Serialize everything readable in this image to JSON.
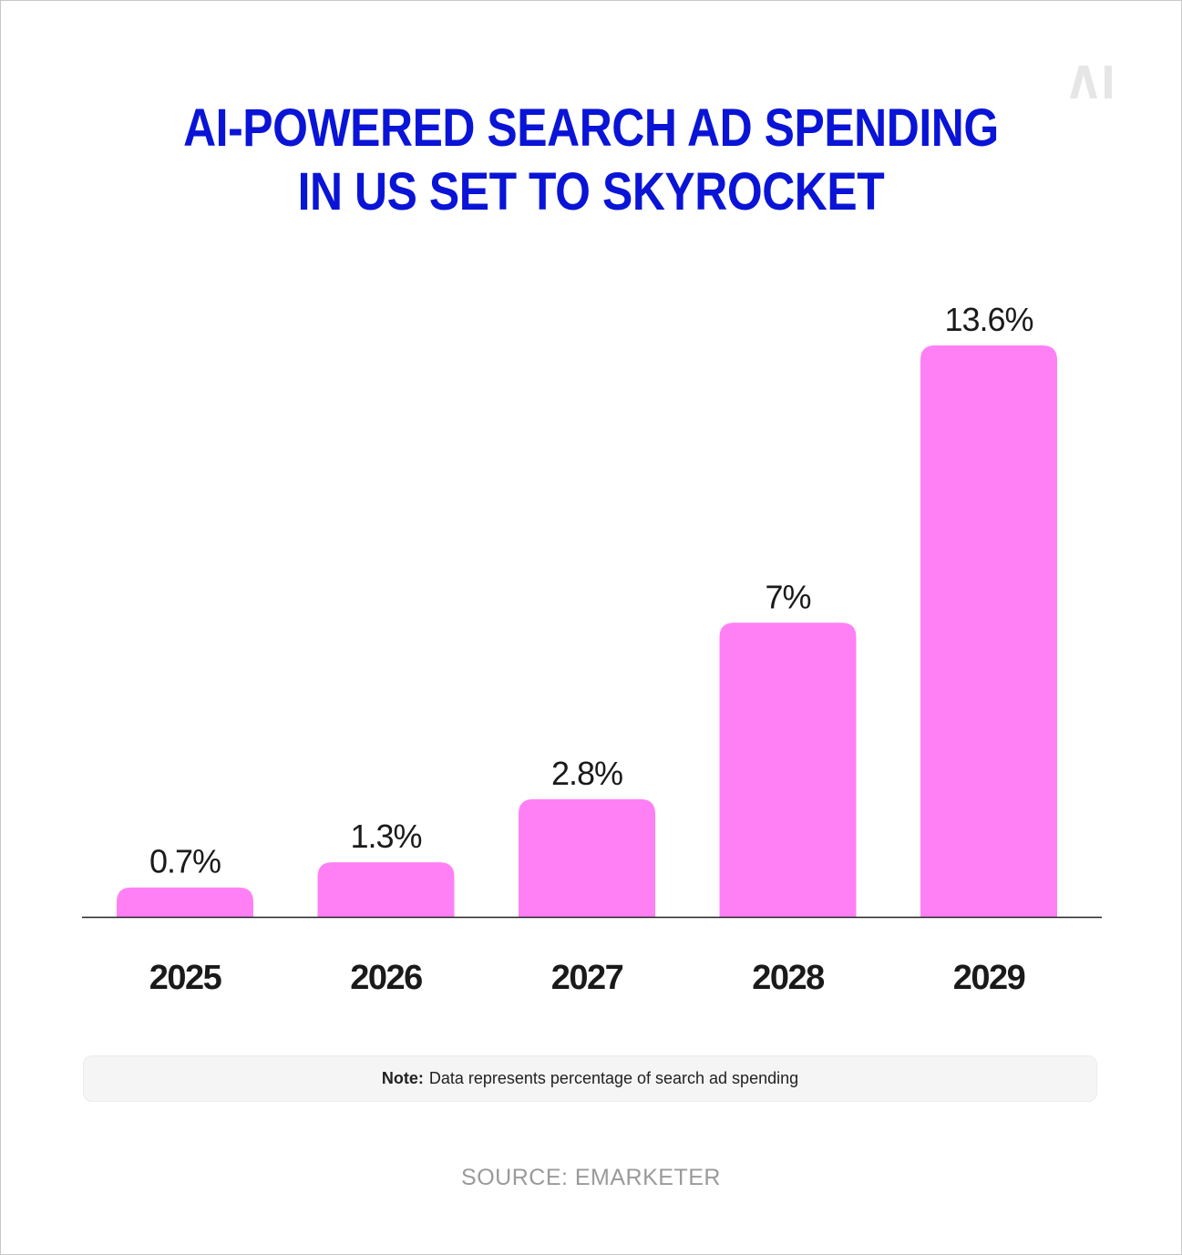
{
  "header": {
    "title_line1": "AI-POWERED SEARCH AD SPENDING",
    "title_line2": "IN US SET TO SKYROCKET",
    "logo_text": "AI"
  },
  "colors": {
    "title": "#0a14d6",
    "bar": "#ff80f5",
    "axis": "#222222",
    "label": "#1a1a1a",
    "logo": "#e6e6e6"
  },
  "chart_data": {
    "type": "bar",
    "categories": [
      "2025",
      "2026",
      "2027",
      "2028",
      "2029"
    ],
    "values": [
      0.7,
      1.3,
      2.8,
      7,
      13.6
    ],
    "value_labels": [
      "0.7%",
      "1.3%",
      "2.8%",
      "7%",
      "13.6%"
    ],
    "title": "AI-POWERED SEARCH AD SPENDING IN US SET TO SKYROCKET",
    "xlabel": "",
    "ylabel": "",
    "ylim": [
      0,
      13.6
    ],
    "grid": false,
    "legend": "none"
  },
  "note": {
    "label": "Note:",
    "text": "Data represents percentage of search ad spending"
  },
  "source": {
    "text": "SOURCE: EMARKETER"
  }
}
